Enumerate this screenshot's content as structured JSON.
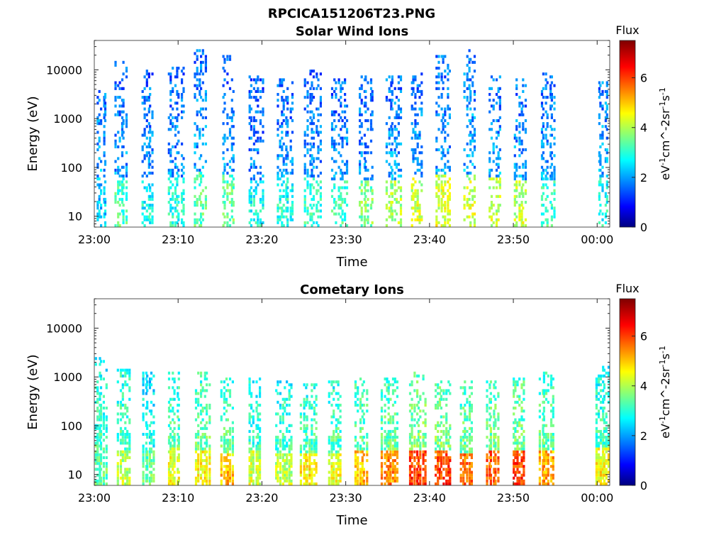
{
  "figure_title": "RPCICA151206T23.PNG",
  "chart_data": [
    {
      "type": "heatmap",
      "title": "Solar Wind Ions",
      "xlabel": "Time",
      "ylabel": "Energy (eV)",
      "yscale": "log",
      "ylim": [
        6,
        40000
      ],
      "xlim": [
        "23:00",
        "00:01:30"
      ],
      "xticks": [
        "23:00",
        "23:10",
        "23:20",
        "23:30",
        "23:40",
        "23:50",
        "00:00"
      ],
      "yticks": [
        "10",
        "100",
        "1000",
        "10000"
      ],
      "colorbar": {
        "title": "Flux",
        "label": "eV^-1cm^-2sr^-1s^-1",
        "ticks": [
          "0",
          "2",
          "4",
          "6"
        ],
        "range": [
          0,
          7.5
        ],
        "colormap": "jet"
      },
      "bursts": [
        {
          "t": "23:00:30",
          "hi": 4000,
          "lo": 8,
          "peak": 2.4,
          "low_peak": 2.5
        },
        {
          "t": "23:03:10",
          "hi": 15000,
          "lo": 6,
          "peak": 2.2,
          "low_peak": 3.4
        },
        {
          "t": "23:06:20",
          "hi": 10000,
          "lo": 6,
          "peak": 2.2,
          "low_peak": 3.0
        },
        {
          "t": "23:09:30",
          "hi": 12000,
          "lo": 6,
          "peak": 2.2,
          "low_peak": 3.1
        },
        {
          "t": "23:12:40",
          "hi": 25000,
          "lo": 7,
          "peak": 2.3,
          "low_peak": 3.5
        },
        {
          "t": "23:16:00",
          "hi": 20000,
          "lo": 6,
          "peak": 2.2,
          "low_peak": 3.6
        },
        {
          "t": "23:19:10",
          "hi": 8000,
          "lo": 7,
          "peak": 2.1,
          "low_peak": 3.0
        },
        {
          "t": "23:22:30",
          "hi": 7000,
          "lo": 8,
          "peak": 2.2,
          "low_peak": 3.1
        },
        {
          "t": "23:25:50",
          "hi": 10000,
          "lo": 7,
          "peak": 2.2,
          "low_peak": 3.2
        },
        {
          "t": "23:29:00",
          "hi": 7000,
          "lo": 7,
          "peak": 2.2,
          "low_peak": 3.4
        },
        {
          "t": "23:32:20",
          "hi": 8000,
          "lo": 6,
          "peak": 2.2,
          "low_peak": 3.8
        },
        {
          "t": "23:35:30",
          "hi": 8000,
          "lo": 7,
          "peak": 2.3,
          "low_peak": 4.2
        },
        {
          "t": "23:38:30",
          "hi": 9000,
          "lo": 7,
          "peak": 2.3,
          "low_peak": 4.4
        },
        {
          "t": "23:41:30",
          "hi": 20000,
          "lo": 7,
          "peak": 2.3,
          "low_peak": 4.5
        },
        {
          "t": "23:44:50",
          "hi": 27000,
          "lo": 6,
          "peak": 2.4,
          "low_peak": 4.4
        },
        {
          "t": "23:47:50",
          "hi": 8000,
          "lo": 8,
          "peak": 2.3,
          "low_peak": 4.3
        },
        {
          "t": "23:50:50",
          "hi": 7000,
          "lo": 7,
          "peak": 2.3,
          "low_peak": 4.3
        },
        {
          "t": "23:54:00",
          "hi": 9000,
          "lo": 6,
          "peak": 2.3,
          "low_peak": 3.3
        },
        {
          "t": "00:00:50",
          "hi": 6000,
          "lo": 8,
          "peak": 2.4,
          "low_peak": 3.0
        }
      ]
    },
    {
      "type": "heatmap",
      "title": "Cometary Ions",
      "xlabel": "Time",
      "ylabel": "Energy (eV)",
      "yscale": "log",
      "ylim": [
        6,
        40000
      ],
      "xlim": [
        "23:00",
        "00:01:30"
      ],
      "xticks": [
        "23:00",
        "23:10",
        "23:20",
        "23:30",
        "23:40",
        "23:50",
        "00:00"
      ],
      "yticks": [
        "10",
        "100",
        "1000",
        "10000"
      ],
      "colorbar": {
        "title": "Flux",
        "label": "eV^-1cm^-2sr^-1s^-1",
        "ticks": [
          "0",
          "2",
          "4",
          "6"
        ],
        "range": [
          0,
          7.5
        ],
        "colormap": "jet"
      },
      "bursts": [
        {
          "t": "23:00:30",
          "hi": 2500,
          "lo": 8,
          "peak": 3.4,
          "low_peak": 3.6
        },
        {
          "t": "23:03:30",
          "hi": 1500,
          "lo": 6,
          "peak": 3.6,
          "low_peak": 4.2
        },
        {
          "t": "23:06:30",
          "hi": 1200,
          "lo": 7,
          "peak": 3.2,
          "low_peak": 3.6
        },
        {
          "t": "23:09:30",
          "hi": 1400,
          "lo": 7,
          "peak": 3.6,
          "low_peak": 4.6
        },
        {
          "t": "23:12:50",
          "hi": 1200,
          "lo": 7,
          "peak": 3.8,
          "low_peak": 4.8
        },
        {
          "t": "23:15:50",
          "hi": 1000,
          "lo": 6,
          "peak": 3.8,
          "low_peak": 5.2
        },
        {
          "t": "23:19:10",
          "hi": 1000,
          "lo": 7,
          "peak": 3.4,
          "low_peak": 4.4
        },
        {
          "t": "23:22:20",
          "hi": 800,
          "lo": 7,
          "peak": 3.5,
          "low_peak": 4.2
        },
        {
          "t": "23:25:20",
          "hi": 700,
          "lo": 7,
          "peak": 3.6,
          "low_peak": 4.8
        },
        {
          "t": "23:28:40",
          "hi": 800,
          "lo": 7,
          "peak": 3.6,
          "low_peak": 4.6
        },
        {
          "t": "23:31:50",
          "hi": 1000,
          "lo": 7,
          "peak": 3.7,
          "low_peak": 5.2
        },
        {
          "t": "23:35:00",
          "hi": 1000,
          "lo": 7,
          "peak": 3.8,
          "low_peak": 5.6
        },
        {
          "t": "23:38:20",
          "hi": 1200,
          "lo": 7,
          "peak": 4.0,
          "low_peak": 6.2
        },
        {
          "t": "23:41:20",
          "hi": 1000,
          "lo": 7,
          "peak": 4.0,
          "low_peak": 6.2
        },
        {
          "t": "23:44:20",
          "hi": 800,
          "lo": 7,
          "peak": 3.8,
          "low_peak": 5.8
        },
        {
          "t": "23:47:30",
          "hi": 900,
          "lo": 7,
          "peak": 3.9,
          "low_peak": 6.0
        },
        {
          "t": "23:50:40",
          "hi": 1000,
          "lo": 7,
          "peak": 3.9,
          "low_peak": 6.2
        },
        {
          "t": "23:53:50",
          "hi": 1200,
          "lo": 7,
          "peak": 3.7,
          "low_peak": 5.4
        },
        {
          "t": "00:00:30",
          "hi": 1600,
          "lo": 7,
          "peak": 3.5,
          "low_peak": 4.8
        }
      ]
    }
  ]
}
